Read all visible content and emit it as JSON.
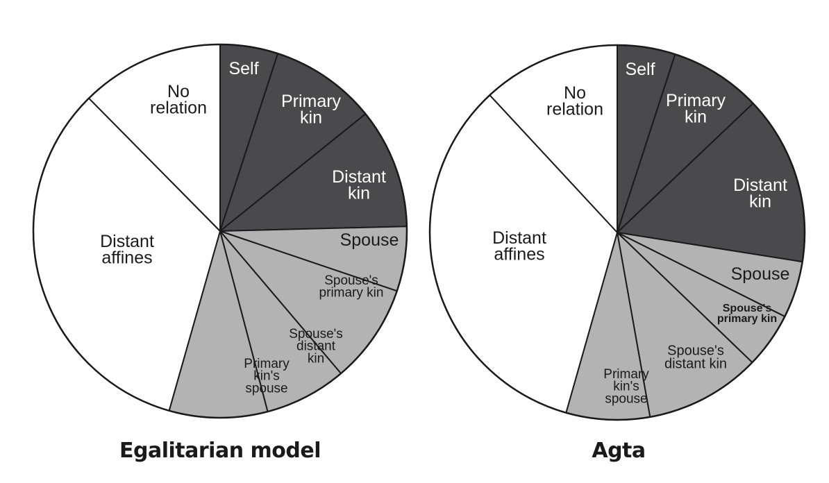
{
  "chart_data": [
    {
      "type": "pie",
      "title": "Egalitarian model",
      "slices": [
        {
          "label": "Self",
          "value": 5.0,
          "group": "kin"
        },
        {
          "label": "Primary kin",
          "value": 9.2,
          "group": "kin"
        },
        {
          "label": "Distant kin",
          "value": 10.4,
          "group": "kin"
        },
        {
          "label": "Spouse",
          "value": 5.6,
          "group": "affine-close"
        },
        {
          "label": "Spouse's primary kin",
          "value": 8.6,
          "group": "affine-close"
        },
        {
          "label": "Spouse's distant kin",
          "value": 7.1,
          "group": "affine-close"
        },
        {
          "label": "Primary kin's spouse",
          "value": 8.5,
          "group": "affine-close"
        },
        {
          "label": "Distant affines",
          "value": 33.2,
          "group": "none"
        },
        {
          "label": "No relation",
          "value": 12.4,
          "group": "none"
        }
      ]
    },
    {
      "type": "pie",
      "title": "Agta",
      "slices": [
        {
          "label": "Self",
          "value": 5.0,
          "group": "kin"
        },
        {
          "label": "Primary kin",
          "value": 7.9,
          "group": "kin"
        },
        {
          "label": "Distant kin",
          "value": 14.6,
          "group": "kin"
        },
        {
          "label": "Spouse",
          "value": 4.9,
          "group": "affine-close"
        },
        {
          "label": "Spouse's primary kin",
          "value": 4.8,
          "group": "affine-close"
        },
        {
          "label": "Spouse's distant kin",
          "value": 10.0,
          "group": "affine-close"
        },
        {
          "label": "Primary kin's spouse",
          "value": 7.2,
          "group": "affine-close"
        },
        {
          "label": "Distant affines",
          "value": 33.7,
          "group": "none"
        },
        {
          "label": "No relation",
          "value": 11.9,
          "group": "none"
        }
      ]
    }
  ],
  "colors": {
    "kin": "#4a4a4c",
    "affine-close": "#b3b3b4",
    "none": "#ffffff",
    "outline": "#1a1a1a"
  }
}
